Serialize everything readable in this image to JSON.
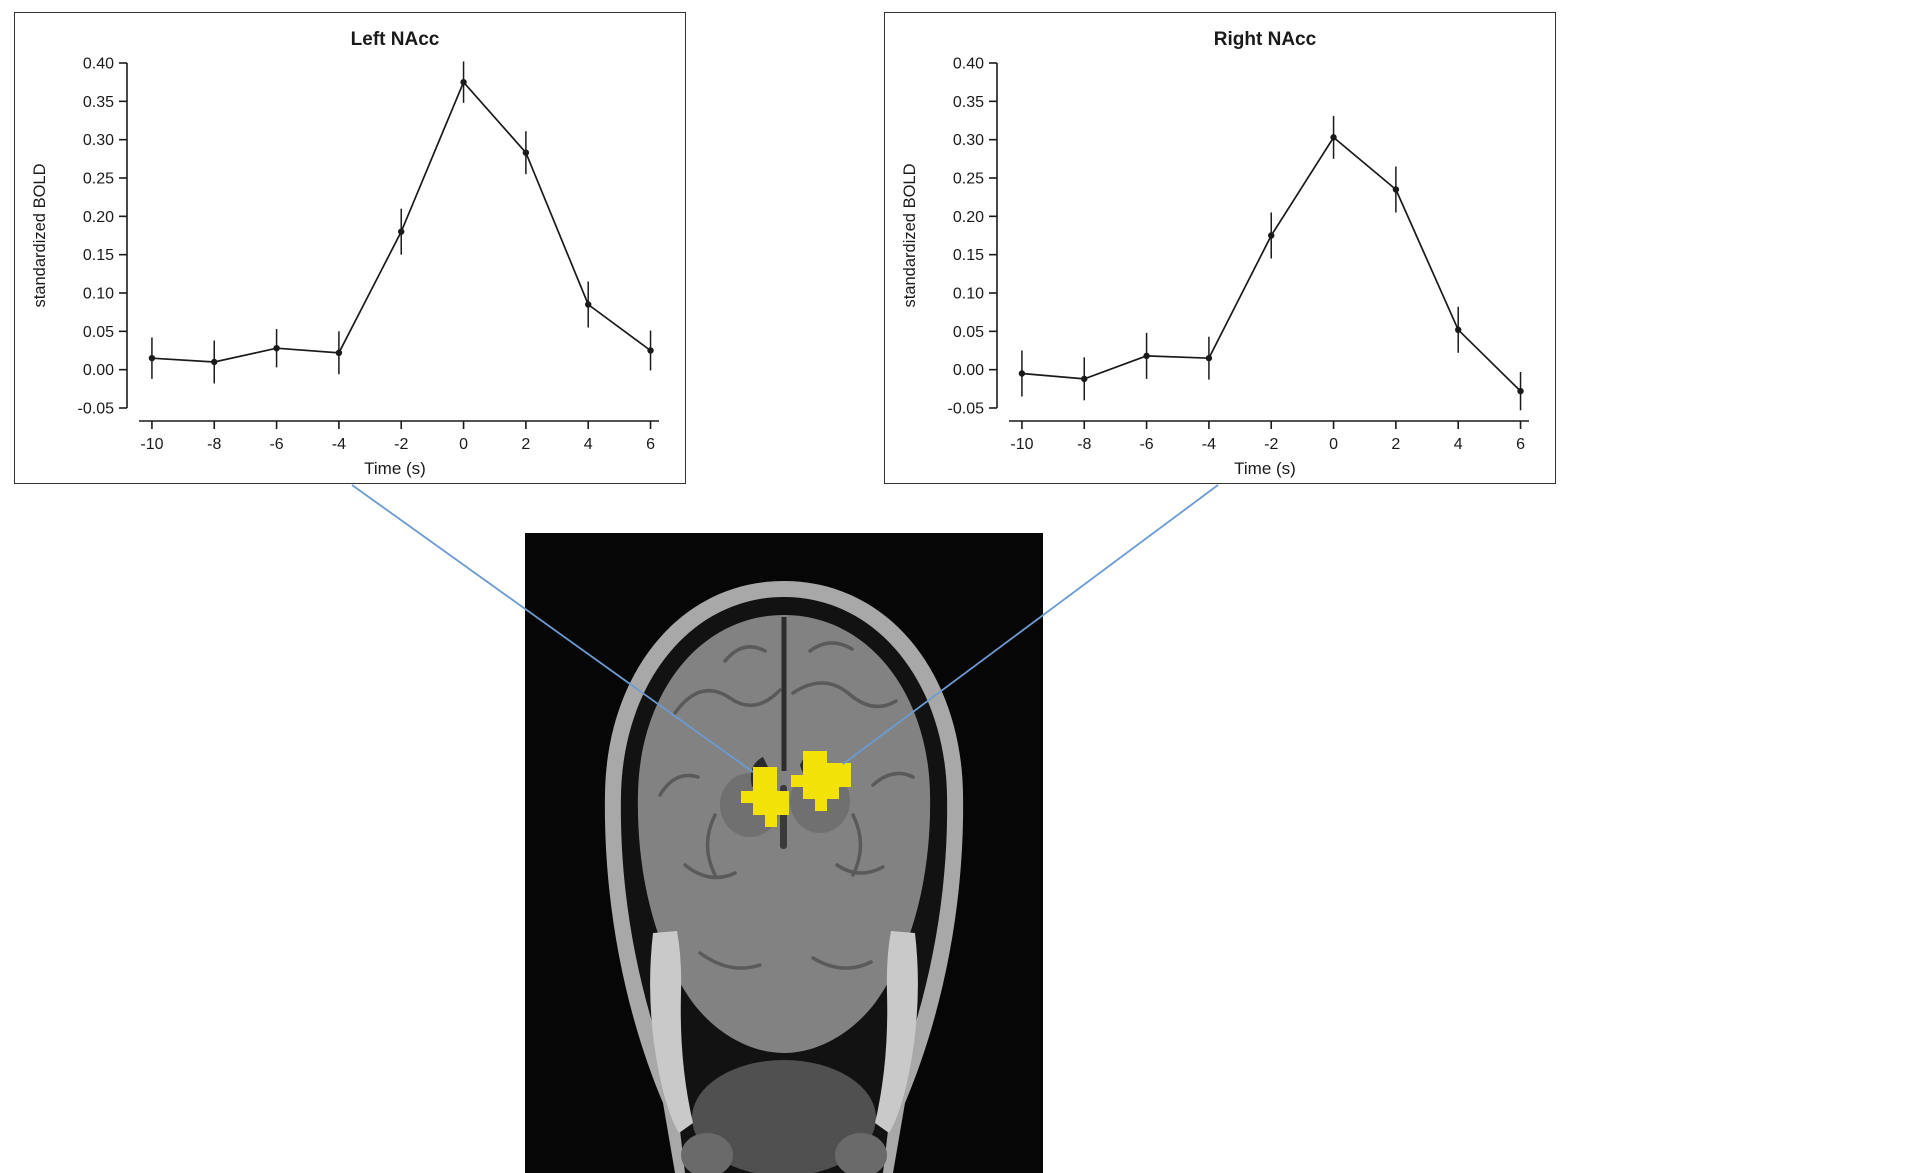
{
  "figure": {
    "connector_color": "#6b9bd2",
    "brain": {
      "description": "Coronal T1-weighted MRI brain slice with bilateral nucleus accumbens activation clusters highlighted in yellow",
      "activation_color": "#f2e205"
    }
  },
  "chart_data": [
    {
      "type": "line",
      "title": "Left NAcc",
      "xlabel": "Time (s)",
      "ylabel": "standardized BOLD",
      "x": [
        -10,
        -8,
        -6,
        -4,
        -2,
        0,
        2,
        4,
        6
      ],
      "values": [
        0.015,
        0.01,
        0.028,
        0.022,
        0.18,
        0.375,
        0.283,
        0.085,
        0.025
      ],
      "errors": [
        0.027,
        0.028,
        0.025,
        0.028,
        0.03,
        0.027,
        0.028,
        0.03,
        0.026
      ],
      "xlim": [
        -10.8,
        6.4
      ],
      "ylim": [
        -0.05,
        0.4
      ],
      "xticks": [
        -10,
        -8,
        -6,
        -4,
        -2,
        0,
        2,
        4,
        6
      ],
      "xtick_labels": [
        "-10",
        "-8",
        "-6",
        "-4",
        "-2",
        "0",
        "2",
        "4",
        "6"
      ],
      "yticks": [
        -0.05,
        0.0,
        0.05,
        0.1,
        0.15,
        0.2,
        0.25,
        0.3,
        0.35,
        0.4
      ],
      "ytick_labels": [
        "-0.05",
        "0.00",
        "0.05",
        "0.10",
        "0.15",
        "0.20",
        "0.25",
        "0.30",
        "0.35",
        "0.40"
      ],
      "grid": false,
      "legend": "none",
      "line_color": "#1a1a1a"
    },
    {
      "type": "line",
      "title": "Right NAcc",
      "xlabel": "Time (s)",
      "ylabel": "standardized BOLD",
      "x": [
        -10,
        -8,
        -6,
        -4,
        -2,
        0,
        2,
        4,
        6
      ],
      "values": [
        -0.005,
        -0.012,
        0.018,
        0.015,
        0.175,
        0.303,
        0.235,
        0.052,
        -0.028
      ],
      "errors": [
        0.03,
        0.028,
        0.03,
        0.028,
        0.03,
        0.028,
        0.03,
        0.03,
        0.025
      ],
      "xlim": [
        -10.8,
        6.4
      ],
      "ylim": [
        -0.05,
        0.4
      ],
      "xticks": [
        -10,
        -8,
        -6,
        -4,
        -2,
        0,
        2,
        4,
        6
      ],
      "xtick_labels": [
        "-10",
        "-8",
        "-6",
        "-4",
        "-2",
        "0",
        "2",
        "4",
        "6"
      ],
      "yticks": [
        -0.05,
        0.0,
        0.05,
        0.1,
        0.15,
        0.2,
        0.25,
        0.3,
        0.35,
        0.4
      ],
      "ytick_labels": [
        "-0.05",
        "0.00",
        "0.05",
        "0.10",
        "0.15",
        "0.20",
        "0.25",
        "0.30",
        "0.35",
        "0.40"
      ],
      "grid": false,
      "legend": "none",
      "line_color": "#1a1a1a"
    }
  ]
}
